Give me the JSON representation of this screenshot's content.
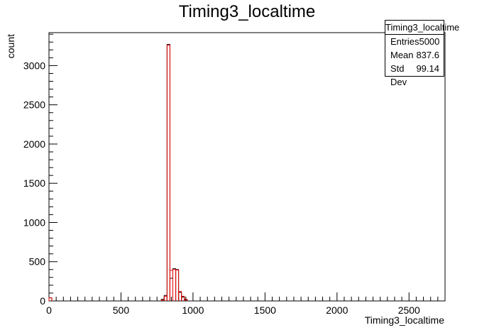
{
  "chart_data": {
    "type": "bar",
    "title": "Timing3_localtime",
    "xlabel": "Timing3_localtime",
    "ylabel": "count",
    "xlim": [
      0,
      2750
    ],
    "ylim": [
      0,
      3420
    ],
    "x_ticks": [
      0,
      500,
      1000,
      1500,
      2000,
      2500
    ],
    "y_ticks": [
      0,
      500,
      1000,
      1500,
      2000,
      2500,
      3000
    ],
    "legend": "none",
    "grid": false,
    "bin_width": 20,
    "series": [
      {
        "color": "#000000",
        "bins": [
          {
            "x": 0,
            "value": 40
          },
          {
            "x": 780,
            "value": 20
          },
          {
            "x": 800,
            "value": 70
          },
          {
            "x": 820,
            "value": 3270
          },
          {
            "x": 840,
            "value": 290
          },
          {
            "x": 860,
            "value": 410
          },
          {
            "x": 880,
            "value": 400
          },
          {
            "x": 900,
            "value": 110
          },
          {
            "x": 920,
            "value": 50
          },
          {
            "x": 940,
            "value": 15
          }
        ]
      },
      {
        "color": "#e00000",
        "bins": [
          {
            "x": 0,
            "value": 40
          },
          {
            "x": 780,
            "value": 10
          },
          {
            "x": 800,
            "value": 60
          },
          {
            "x": 820,
            "value": 3260
          },
          {
            "x": 840,
            "value": 390
          },
          {
            "x": 860,
            "value": 400
          },
          {
            "x": 880,
            "value": 395
          },
          {
            "x": 900,
            "value": 120
          },
          {
            "x": 920,
            "value": 60
          },
          {
            "x": 940,
            "value": 20
          }
        ]
      }
    ]
  },
  "stats": {
    "title": "Timing3_localtime",
    "rows": [
      {
        "label": "Entries",
        "value": "5000"
      },
      {
        "label": "Mean",
        "value": "837.6"
      },
      {
        "label": "Std Dev",
        "value": "99.14"
      }
    ]
  }
}
